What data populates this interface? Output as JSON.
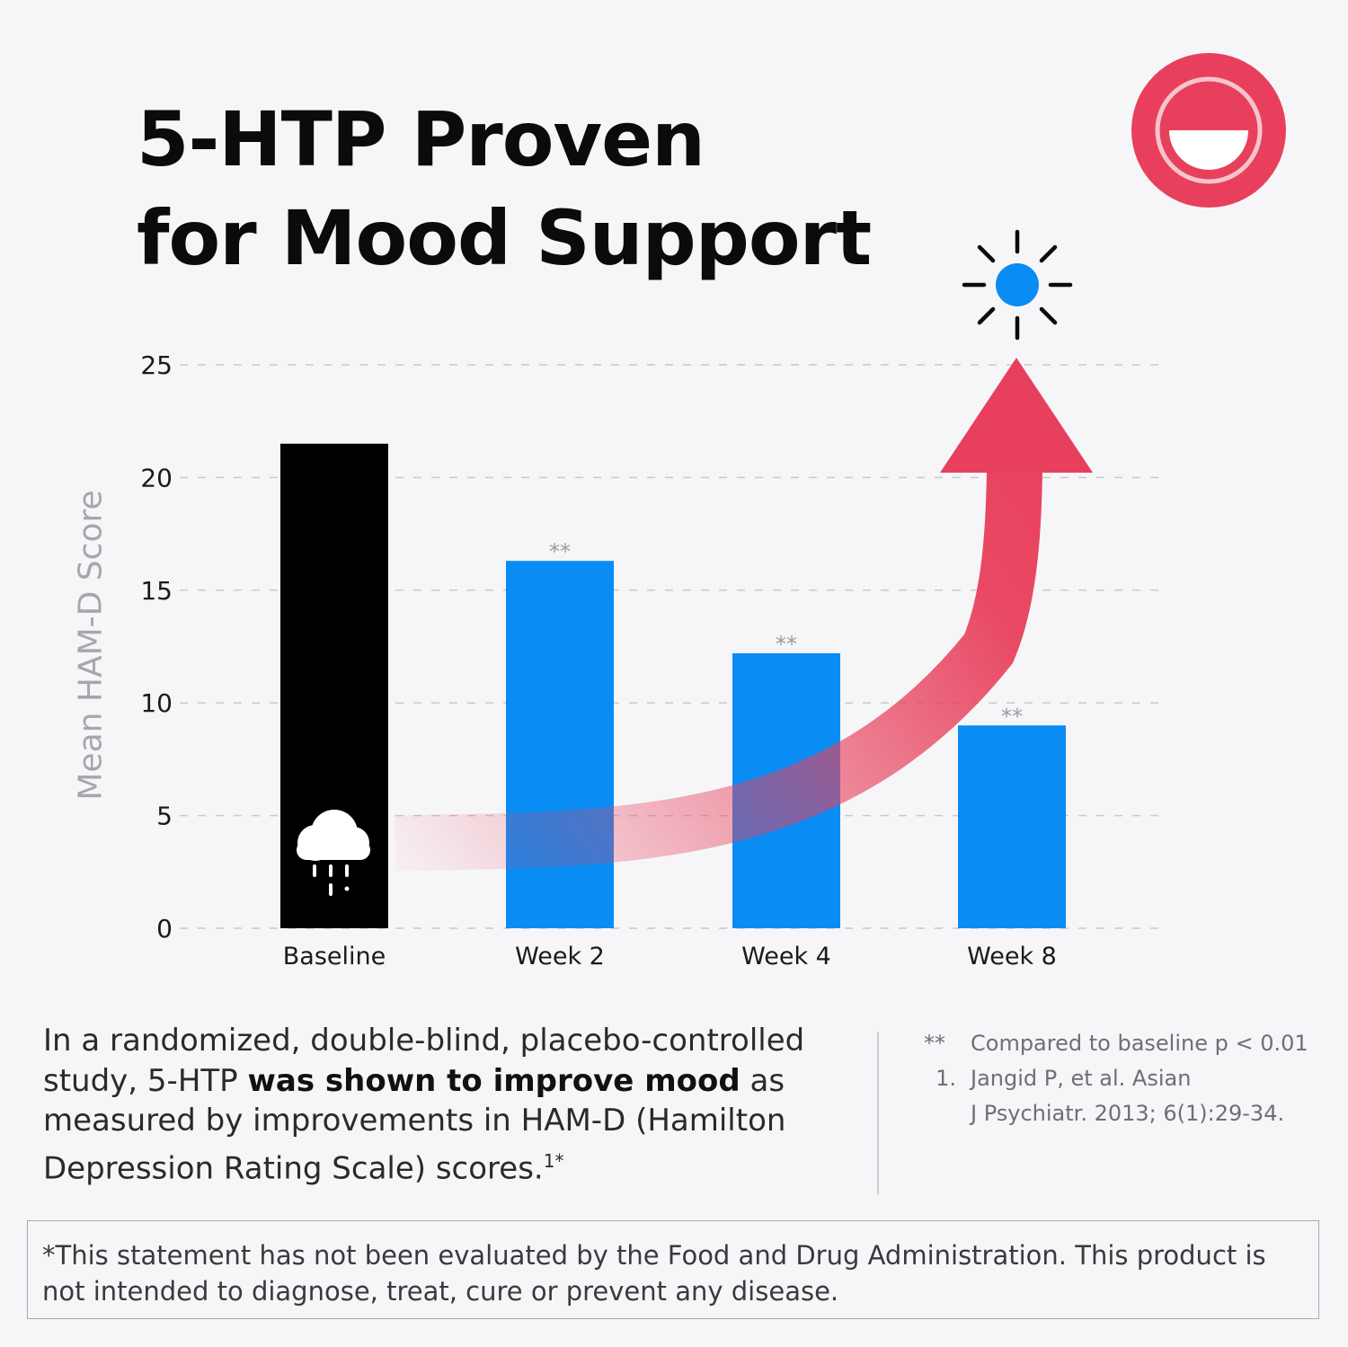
{
  "title_line1": "5-HTP Proven",
  "title_line2": "for Mood Support",
  "colors": {
    "baseline_bar": "#000000",
    "week_bars": "#0a8cf5",
    "arrow": "#e8405c",
    "logo": "#e8405c",
    "sun": "#0a8cf5"
  },
  "icons": {
    "logo": "smiling-face-logo-icon",
    "sun": "sun-icon",
    "cloud": "rain-cloud-icon",
    "arrow": "upward-curved-arrow-icon"
  },
  "chart_data": {
    "type": "bar",
    "categories": [
      "Baseline",
      "Week 2",
      "Week 4",
      "Week 8"
    ],
    "values": [
      21.5,
      16.3,
      12.2,
      9.0
    ],
    "significance": [
      "",
      "**",
      "**",
      "**"
    ],
    "ylabel": "Mean HAM-D Score",
    "xlabel": "",
    "ylim": [
      0,
      25
    ],
    "yticks": [
      0,
      5,
      10,
      15,
      20,
      25
    ],
    "grid": true
  },
  "body": {
    "part1": "In a randomized, double-blind, placebo-controlled study, 5-HTP ",
    "bold": "was shown to improve mood",
    "part2": " as measured by improvements in HAM-D (Hamilton Depression Rating Scale) scores.",
    "sup": "1*"
  },
  "notes": [
    {
      "mark": "**",
      "text": "Compared to baseline p < 0.01"
    },
    {
      "mark": "1.",
      "text": "Jangid P, et al. Asian"
    },
    {
      "mark": "",
      "text": "J Psychiatr. 2013; 6(1):29-34."
    }
  ],
  "disclaimer": "*This statement has not been evaluated by the Food and Drug Administration. This product is not intended to diagnose, treat, cure or prevent any disease."
}
